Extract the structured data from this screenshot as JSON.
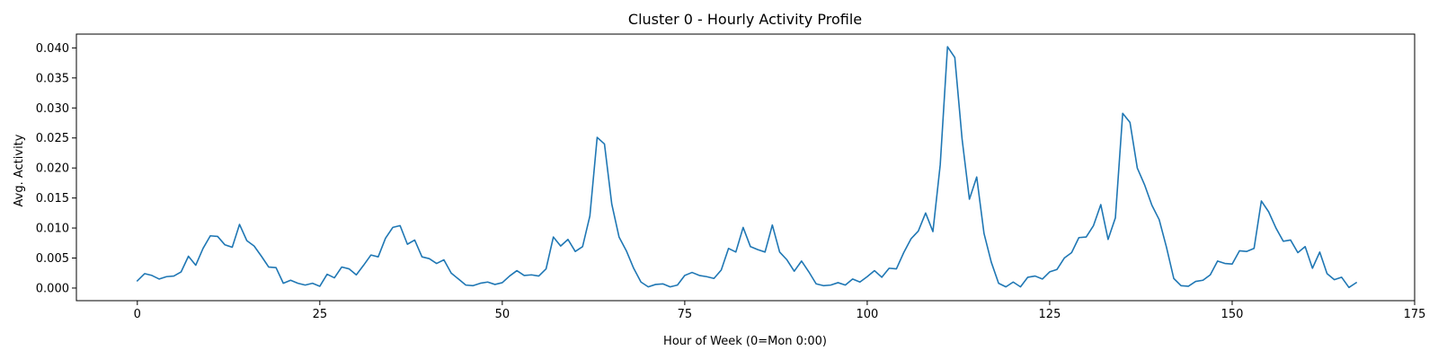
{
  "chart_data": {
    "type": "line",
    "title": "Cluster 0 - Hourly Activity Profile",
    "xlabel": "Hour of Week (0=Mon 0:00)",
    "ylabel": "Avg. Activity",
    "xlim": [
      -8.35,
      175
    ],
    "ylim": [
      -0.0021,
      0.0423
    ],
    "xticks": [
      0,
      25,
      50,
      75,
      100,
      125,
      150,
      175
    ],
    "xtick_labels": [
      "0",
      "25",
      "50",
      "75",
      "100",
      "125",
      "150",
      "175"
    ],
    "yticks": [
      0.0,
      0.005,
      0.01,
      0.015,
      0.02,
      0.025,
      0.03,
      0.035,
      0.04
    ],
    "ytick_labels": [
      "0.000",
      "0.005",
      "0.010",
      "0.015",
      "0.020",
      "0.025",
      "0.030",
      "0.035",
      "0.040"
    ],
    "grid": false,
    "color": "#1f77b4",
    "x_start": 0,
    "values": [
      0.0012,
      0.0024,
      0.0021,
      0.0015,
      0.0019,
      0.002,
      0.0027,
      0.0053,
      0.0038,
      0.0066,
      0.0087,
      0.0086,
      0.0072,
      0.0068,
      0.0106,
      0.0079,
      0.007,
      0.0053,
      0.0035,
      0.0034,
      0.0008,
      0.0013,
      0.0008,
      0.0005,
      0.0008,
      0.0003,
      0.0023,
      0.0017,
      0.0035,
      0.0032,
      0.0022,
      0.0038,
      0.0055,
      0.0052,
      0.0083,
      0.0101,
      0.0104,
      0.0073,
      0.008,
      0.0052,
      0.0049,
      0.0041,
      0.0047,
      0.0025,
      0.0015,
      0.0005,
      0.0004,
      0.0008,
      0.001,
      0.0006,
      0.0009,
      0.002,
      0.0029,
      0.0021,
      0.0022,
      0.002,
      0.0032,
      0.0085,
      0.007,
      0.0081,
      0.0061,
      0.0069,
      0.012,
      0.0251,
      0.024,
      0.014,
      0.0085,
      0.0062,
      0.0033,
      0.001,
      0.0002,
      0.0006,
      0.0007,
      0.0002,
      0.0005,
      0.0021,
      0.0026,
      0.0021,
      0.0019,
      0.0016,
      0.003,
      0.0066,
      0.006,
      0.0101,
      0.0069,
      0.0064,
      0.006,
      0.0105,
      0.006,
      0.0047,
      0.0028,
      0.0045,
      0.0027,
      0.0007,
      0.0004,
      0.0005,
      0.0009,
      0.0005,
      0.0015,
      0.001,
      0.0019,
      0.0029,
      0.0018,
      0.0033,
      0.0032,
      0.0059,
      0.0082,
      0.0095,
      0.0125,
      0.0094,
      0.0205,
      0.0402,
      0.0384,
      0.0248,
      0.0148,
      0.0185,
      0.0091,
      0.0043,
      0.0008,
      0.0002,
      0.001,
      0.0002,
      0.0018,
      0.002,
      0.0015,
      0.0027,
      0.0031,
      0.005,
      0.0059,
      0.0084,
      0.0085,
      0.0104,
      0.0139,
      0.0081,
      0.0117,
      0.0291,
      0.0276,
      0.02,
      0.0172,
      0.0138,
      0.0114,
      0.0068,
      0.0016,
      0.0004,
      0.0003,
      0.0011,
      0.0013,
      0.0022,
      0.0045,
      0.0041,
      0.004,
      0.0062,
      0.0061,
      0.0066,
      0.0145,
      0.0127,
      0.01,
      0.0078,
      0.008,
      0.0059,
      0.0069,
      0.0033,
      0.006,
      0.0024,
      0.0014,
      0.0018,
      0.0001,
      0.0009
    ]
  }
}
